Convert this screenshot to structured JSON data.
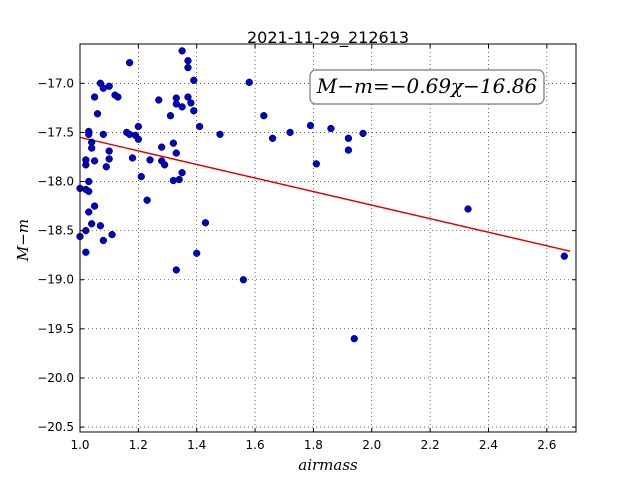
{
  "chart_data": {
    "type": "scatter",
    "title": "2021-11-29_212613",
    "xlabel": "airmass",
    "ylabel": "M−m",
    "xlim": [
      1.0,
      2.7
    ],
    "ylim": [
      -20.55,
      -16.6
    ],
    "x_ticks": [
      1.0,
      1.2,
      1.4,
      1.6,
      1.8,
      2.0,
      2.2,
      2.4,
      2.6
    ],
    "x_tick_labels": [
      "1.0",
      "1.2",
      "1.4",
      "1.6",
      "1.8",
      "2.0",
      "2.2",
      "2.4",
      "2.6"
    ],
    "y_ticks": [
      -17.0,
      -17.5,
      -18.0,
      -18.5,
      -19.0,
      -19.5,
      -20.0,
      -20.5
    ],
    "y_tick_labels": [
      "−17.0",
      "−17.5",
      "−18.0",
      "−18.5",
      "−19.0",
      "−19.5",
      "−20.0",
      "−20.5"
    ],
    "grid": true,
    "annotation": "M−m=−0.69χ−16.86",
    "fit_line": {
      "slope": -0.69,
      "intercept": -16.86,
      "x_range": [
        1.0,
        2.68
      ],
      "color": "#e00000"
    },
    "marker_color": "#0000cc",
    "points": [
      {
        "x": 1.0,
        "y": -18.07
      },
      {
        "x": 1.0,
        "y": -18.56
      },
      {
        "x": 1.02,
        "y": -17.78
      },
      {
        "x": 1.02,
        "y": -17.83
      },
      {
        "x": 1.02,
        "y": -18.08
      },
      {
        "x": 1.02,
        "y": -18.5
      },
      {
        "x": 1.02,
        "y": -18.72
      },
      {
        "x": 1.03,
        "y": -17.49
      },
      {
        "x": 1.03,
        "y": -17.52
      },
      {
        "x": 1.03,
        "y": -18.0
      },
      {
        "x": 1.03,
        "y": -18.1
      },
      {
        "x": 1.03,
        "y": -18.31
      },
      {
        "x": 1.04,
        "y": -17.6
      },
      {
        "x": 1.04,
        "y": -17.66
      },
      {
        "x": 1.04,
        "y": -18.43
      },
      {
        "x": 1.05,
        "y": -17.14
      },
      {
        "x": 1.05,
        "y": -17.79
      },
      {
        "x": 1.05,
        "y": -18.25
      },
      {
        "x": 1.06,
        "y": -17.31
      },
      {
        "x": 1.07,
        "y": -17.0
      },
      {
        "x": 1.07,
        "y": -18.45
      },
      {
        "x": 1.08,
        "y": -17.05
      },
      {
        "x": 1.08,
        "y": -17.52
      },
      {
        "x": 1.08,
        "y": -18.6
      },
      {
        "x": 1.09,
        "y": -17.85
      },
      {
        "x": 1.1,
        "y": -17.03
      },
      {
        "x": 1.1,
        "y": -17.69
      },
      {
        "x": 1.1,
        "y": -17.77
      },
      {
        "x": 1.11,
        "y": -18.54
      },
      {
        "x": 1.12,
        "y": -17.12
      },
      {
        "x": 1.13,
        "y": -17.14
      },
      {
        "x": 1.16,
        "y": -17.5
      },
      {
        "x": 1.17,
        "y": -16.79
      },
      {
        "x": 1.17,
        "y": -17.52
      },
      {
        "x": 1.18,
        "y": -17.76
      },
      {
        "x": 1.19,
        "y": -17.53
      },
      {
        "x": 1.2,
        "y": -17.57
      },
      {
        "x": 1.2,
        "y": -17.44
      },
      {
        "x": 1.21,
        "y": -17.95
      },
      {
        "x": 1.23,
        "y": -18.19
      },
      {
        "x": 1.24,
        "y": -17.78
      },
      {
        "x": 1.27,
        "y": -17.17
      },
      {
        "x": 1.28,
        "y": -17.79
      },
      {
        "x": 1.28,
        "y": -17.65
      },
      {
        "x": 1.29,
        "y": -17.83
      },
      {
        "x": 1.31,
        "y": -17.33
      },
      {
        "x": 1.32,
        "y": -17.61
      },
      {
        "x": 1.32,
        "y": -17.99
      },
      {
        "x": 1.33,
        "y": -17.15
      },
      {
        "x": 1.33,
        "y": -17.21
      },
      {
        "x": 1.33,
        "y": -17.71
      },
      {
        "x": 1.33,
        "y": -18.9
      },
      {
        "x": 1.34,
        "y": -17.98
      },
      {
        "x": 1.35,
        "y": -16.67
      },
      {
        "x": 1.35,
        "y": -17.24
      },
      {
        "x": 1.35,
        "y": -17.91
      },
      {
        "x": 1.37,
        "y": -16.77
      },
      {
        "x": 1.37,
        "y": -16.84
      },
      {
        "x": 1.37,
        "y": -17.14
      },
      {
        "x": 1.38,
        "y": -17.2
      },
      {
        "x": 1.39,
        "y": -16.97
      },
      {
        "x": 1.39,
        "y": -17.28
      },
      {
        "x": 1.4,
        "y": -18.73
      },
      {
        "x": 1.41,
        "y": -17.44
      },
      {
        "x": 1.43,
        "y": -18.42
      },
      {
        "x": 1.48,
        "y": -17.52
      },
      {
        "x": 1.56,
        "y": -19.0
      },
      {
        "x": 1.58,
        "y": -16.99
      },
      {
        "x": 1.63,
        "y": -17.33
      },
      {
        "x": 1.66,
        "y": -17.56
      },
      {
        "x": 1.72,
        "y": -17.5
      },
      {
        "x": 1.79,
        "y": -17.43
      },
      {
        "x": 1.81,
        "y": -17.82
      },
      {
        "x": 1.86,
        "y": -17.46
      },
      {
        "x": 1.92,
        "y": -17.56
      },
      {
        "x": 1.92,
        "y": -17.68
      },
      {
        "x": 1.94,
        "y": -19.6
      },
      {
        "x": 1.97,
        "y": -17.51
      },
      {
        "x": 2.33,
        "y": -18.28
      },
      {
        "x": 2.66,
        "y": -18.76
      }
    ]
  }
}
